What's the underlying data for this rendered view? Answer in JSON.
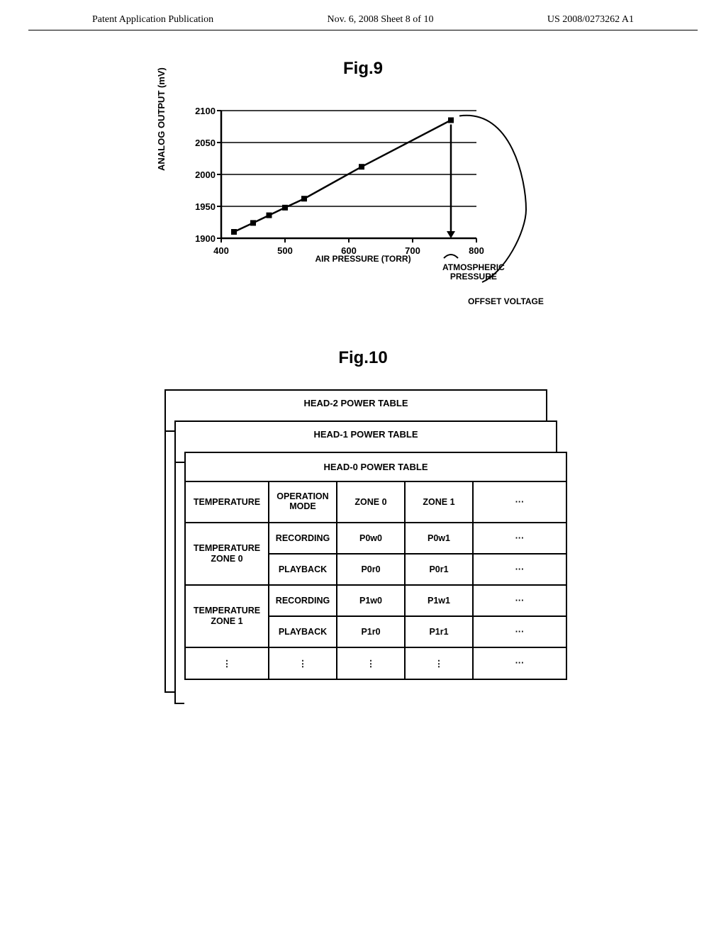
{
  "header": {
    "left": "Patent Application Publication",
    "center": "Nov. 6, 2008  Sheet 8 of 10",
    "right": "US 2008/0273262 A1"
  },
  "fig9": {
    "label": "Fig.9",
    "chart": {
      "type": "line",
      "ylabel": "ANALOG OUTPUT (mV)",
      "xlabel": "AIR PRESSURE (TORR)",
      "xlim": [
        400,
        800
      ],
      "ylim": [
        1900,
        2100
      ],
      "xticks": [
        400,
        500,
        600,
        700,
        800
      ],
      "yticks": [
        1900,
        1950,
        2000,
        2050,
        2100
      ],
      "xtick_labels": [
        "400",
        "500",
        "600",
        "700",
        "800"
      ],
      "ytick_labels": [
        "1900",
        "1950",
        "2000",
        "2050",
        "2100"
      ],
      "grid_color": "#000000",
      "line_color": "#000000",
      "marker_color": "#000000",
      "marker": "square",
      "points_x": [
        420,
        450,
        475,
        500,
        530,
        620,
        760
      ],
      "points_y": [
        1910,
        1924,
        1936,
        1948,
        1962,
        2012,
        2085
      ],
      "annotation_atm": "ATMOSPHERIC\nPRESSURE",
      "annotation_offset": "OFFSET VOLTAGE"
    }
  },
  "fig10": {
    "label": "Fig.10",
    "tables": {
      "layer2_title": "HEAD-2 POWER TABLE",
      "layer1_title": "HEAD-1 POWER TABLE",
      "main_title": "HEAD-0 POWER TABLE",
      "columns": [
        "TEMPERATURE",
        "OPERATION MODE",
        "ZONE 0",
        "ZONE 1",
        "···"
      ],
      "rows": [
        {
          "temp": "TEMPERATURE ZONE 0",
          "mode": "RECORDING",
          "z0": "P0w0",
          "z1": "P0w1",
          "more": "···"
        },
        {
          "temp": "",
          "mode": "PLAYBACK",
          "z0": "P0r0",
          "z1": "P0r1",
          "more": "···"
        },
        {
          "temp": "TEMPERATURE ZONE 1",
          "mode": "RECORDING",
          "z0": "P1w0",
          "z1": "P1w1",
          "more": "···"
        },
        {
          "temp": "",
          "mode": "PLAYBACK",
          "z0": "P1r0",
          "z1": "P1r1",
          "more": "···"
        },
        {
          "temp": "⋮",
          "mode": "⋮",
          "z0": "⋮",
          "z1": "⋮",
          "more": "···"
        }
      ]
    }
  }
}
